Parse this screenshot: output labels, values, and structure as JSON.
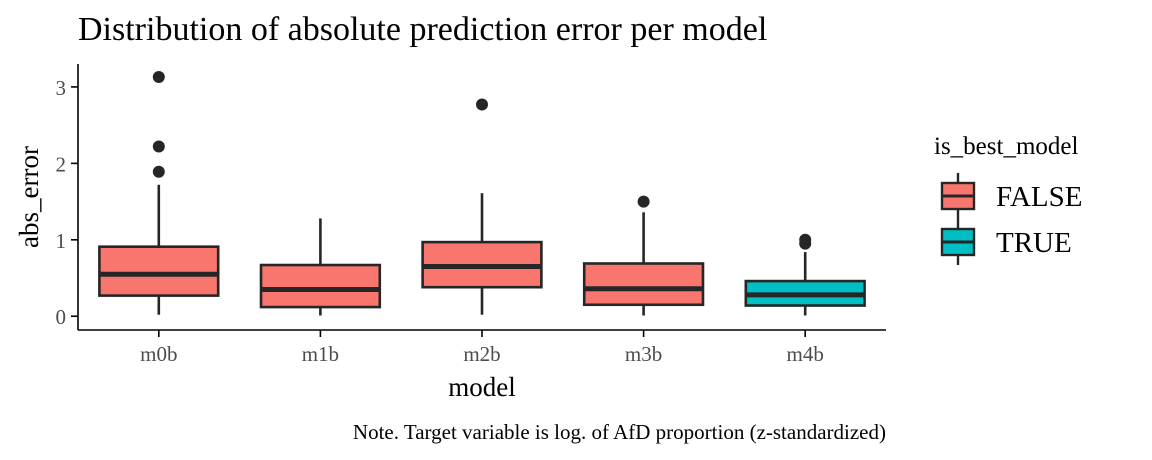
{
  "chart_data": {
    "type": "boxplot",
    "title": "Distribution of absolute prediction error per model",
    "xlabel": "model",
    "ylabel": "abs_error",
    "ylim": [
      -0.18,
      3.3
    ],
    "yticks": [
      0,
      1,
      2,
      3
    ],
    "grid": false,
    "legend": {
      "title": "is_best_model",
      "placement": "right",
      "entries": [
        {
          "label": "FALSE",
          "color": "#F8766D"
        },
        {
          "label": "TRUE",
          "color": "#00BFC4"
        }
      ]
    },
    "categories": [
      "m0b",
      "m1b",
      "m2b",
      "m3b",
      "m4b"
    ],
    "boxes": [
      {
        "category": "m0b",
        "group": "FALSE",
        "min": 0.02,
        "q1": 0.27,
        "median": 0.55,
        "q3": 0.91,
        "max": 1.72,
        "outliers": [
          1.89,
          2.22,
          3.13
        ]
      },
      {
        "category": "m1b",
        "group": "FALSE",
        "min": 0.01,
        "q1": 0.12,
        "median": 0.35,
        "q3": 0.67,
        "max": 1.28,
        "outliers": []
      },
      {
        "category": "m2b",
        "group": "FALSE",
        "min": 0.02,
        "q1": 0.38,
        "median": 0.65,
        "q3": 0.97,
        "max": 1.61,
        "outliers": [
          2.77
        ]
      },
      {
        "category": "m3b",
        "group": "FALSE",
        "min": 0.01,
        "q1": 0.15,
        "median": 0.36,
        "q3": 0.69,
        "max": 1.36,
        "outliers": [
          1.5
        ]
      },
      {
        "category": "m4b",
        "group": "TRUE",
        "min": 0.01,
        "q1": 0.14,
        "median": 0.28,
        "q3": 0.46,
        "max": 0.84,
        "outliers": [
          0.95,
          1.0
        ]
      }
    ],
    "caption": "Note. Target variable is log. of AfD proportion (z-standardized)"
  },
  "colors": {
    "FALSE": "#F8766D",
    "TRUE": "#00BFC4",
    "line": "#262626",
    "axis_text": "#4d4d4d"
  }
}
